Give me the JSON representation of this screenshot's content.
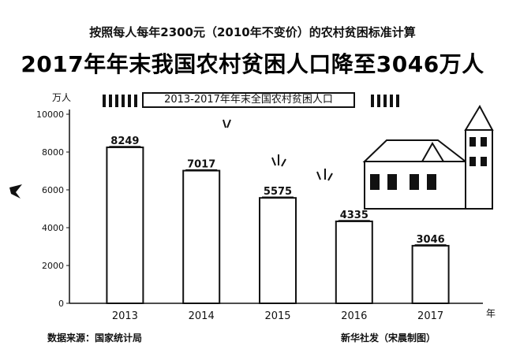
{
  "header": {
    "subtitle": "按照每人每年2300元（2010年不变价）的农村贫困标准计算",
    "title": "2017年年末我国农村贫困人口降至3046万人"
  },
  "chart_caption": "2013-2017年年末全国农村贫困人口",
  "footer": {
    "source": "数据来源：国家统计局",
    "credit": "新华社发（宋晨制图）"
  },
  "chart_data": {
    "type": "bar",
    "categories": [
      "2013",
      "2014",
      "2015",
      "2016",
      "2017"
    ],
    "values": [
      8249,
      7017,
      5575,
      4335,
      3046
    ],
    "ylabel": "万人",
    "xlabel": "年",
    "ylim": [
      0,
      10000
    ],
    "yticks": [
      0,
      2000,
      4000,
      6000,
      8000,
      10000
    ],
    "grid": false,
    "bar_color": "#ffffff",
    "bar_outline": "#111111"
  }
}
